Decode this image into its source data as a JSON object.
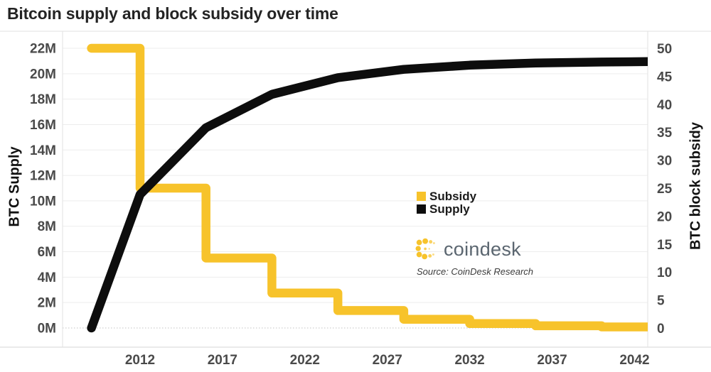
{
  "chart_data": {
    "type": "line",
    "title": "Bitcoin supply and block subsidy over time",
    "grid": "horizontal",
    "legend_position": "center-right",
    "x_axis": {
      "tick_labels": [
        "2012",
        "2017",
        "2022",
        "2027",
        "2032",
        "2037",
        "2042"
      ],
      "range": [
        2007.3,
        2042.8
      ]
    },
    "y_left": {
      "label": "BTC Supply",
      "tick_labels": [
        "22M",
        "20M",
        "18M",
        "16M",
        "14M",
        "12M",
        "10M",
        "8M",
        "6M",
        "4M",
        "2M",
        "0M"
      ],
      "min": 0,
      "max": 22,
      "unit": "millions of BTC"
    },
    "y_right": {
      "label": "BTC block subsidy",
      "tick_labels": [
        "50",
        "45",
        "40",
        "35",
        "30",
        "25",
        "20",
        "15",
        "10",
        "5",
        "0"
      ],
      "min": 0,
      "max": 50,
      "unit": "BTC per block"
    },
    "series": [
      {
        "name": "Subsidy",
        "axis": "right",
        "color": "#F7C32B",
        "style": "step",
        "points": [
          [
            2009.05,
            50
          ],
          [
            2012,
            50
          ],
          [
            2012,
            25
          ],
          [
            2016,
            25
          ],
          [
            2016,
            12.5
          ],
          [
            2020,
            12.5
          ],
          [
            2020,
            6.25
          ],
          [
            2024,
            6.25
          ],
          [
            2024,
            3.125
          ],
          [
            2028,
            3.125
          ],
          [
            2028,
            1.5625
          ],
          [
            2032,
            1.5625
          ],
          [
            2032,
            0.78125
          ],
          [
            2036,
            0.78125
          ],
          [
            2036,
            0.390625
          ],
          [
            2040,
            0.390625
          ],
          [
            2040,
            0.1953125
          ],
          [
            2042.8,
            0.1953125
          ]
        ]
      },
      {
        "name": "Supply",
        "axis": "left",
        "color": "#0d0d0d",
        "style": "line",
        "points": [
          [
            2009.05,
            0
          ],
          [
            2012,
            10.5
          ],
          [
            2016,
            15.75
          ],
          [
            2020,
            18.375
          ],
          [
            2024,
            19.6875
          ],
          [
            2028,
            20.344
          ],
          [
            2032,
            20.672
          ],
          [
            2036,
            20.836
          ],
          [
            2040,
            20.918
          ],
          [
            2042.8,
            20.95
          ]
        ]
      }
    ]
  },
  "branding": {
    "logo_text": "coindesk",
    "source": "Source: CoinDesk Research",
    "brand_yellow": "#F7C32B",
    "wordmark_gray": "#5b6670"
  }
}
